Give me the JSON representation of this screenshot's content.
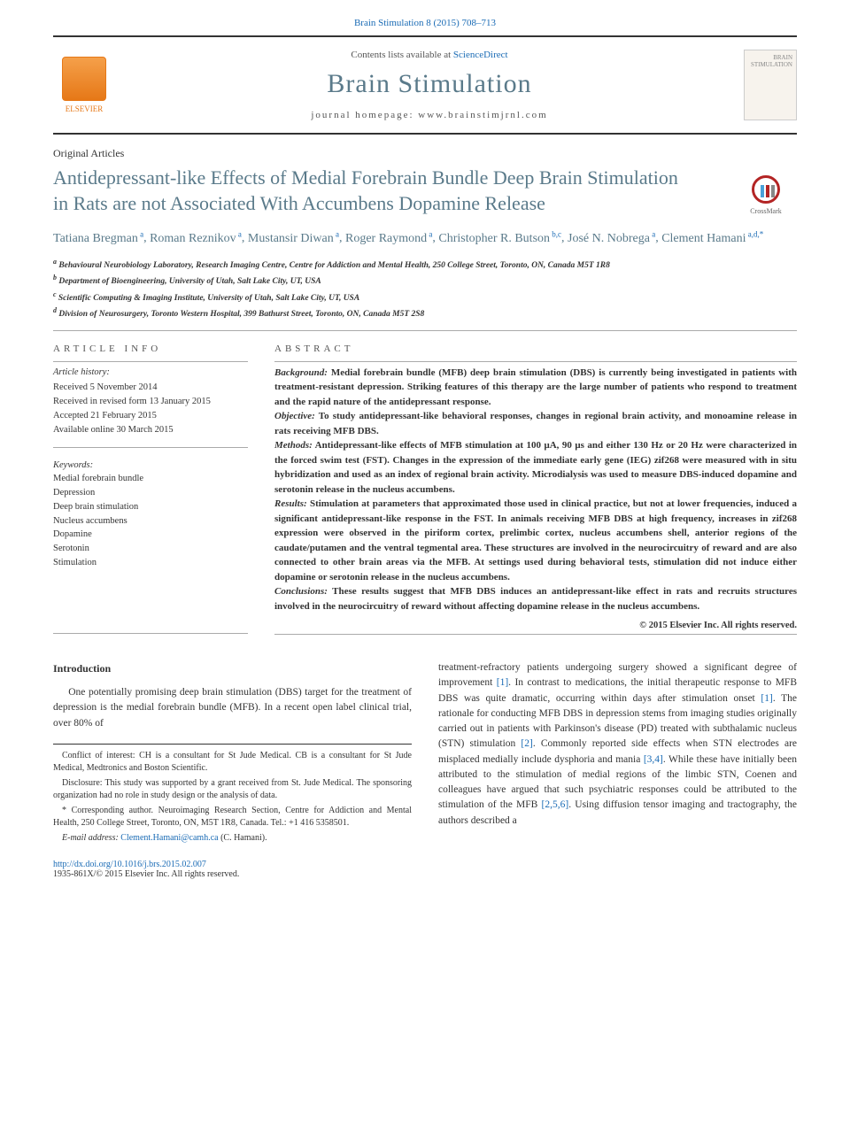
{
  "header_citation": "Brain Stimulation 8 (2015) 708–713",
  "masthead": {
    "publisher": "ELSEVIER",
    "contents_prefix": "Contents lists available at ",
    "contents_link": "ScienceDirect",
    "journal_name": "Brain Stimulation",
    "homepage_prefix": "journal homepage: ",
    "homepage_url": "www.brainstimjrnl.com",
    "cover_text": "BRAIN STIMULATION"
  },
  "article_type": "Original Articles",
  "title": "Antidepressant-like Effects of Medial Forebrain Bundle Deep Brain Stimulation in Rats are not Associated With Accumbens Dopamine Release",
  "crossmark": "CrossMark",
  "authors": [
    {
      "name": "Tatiana Bregman",
      "aff": "a"
    },
    {
      "name": "Roman Reznikov",
      "aff": "a"
    },
    {
      "name": "Mustansir Diwan",
      "aff": "a"
    },
    {
      "name": "Roger Raymond",
      "aff": "a"
    },
    {
      "name": "Christopher R. Butson",
      "aff": "b,c"
    },
    {
      "name": "José N. Nobrega",
      "aff": "a"
    },
    {
      "name": "Clement Hamani",
      "aff": "a,d,*"
    }
  ],
  "affiliations": [
    {
      "key": "a",
      "text": "Behavioural Neurobiology Laboratory, Research Imaging Centre, Centre for Addiction and Mental Health, 250 College Street, Toronto, ON, Canada M5T 1R8"
    },
    {
      "key": "b",
      "text": "Department of Bioengineering, University of Utah, Salt Lake City, UT, USA"
    },
    {
      "key": "c",
      "text": "Scientific Computing & Imaging Institute, University of Utah, Salt Lake City, UT, USA"
    },
    {
      "key": "d",
      "text": "Division of Neurosurgery, Toronto Western Hospital, 399 Bathurst Street, Toronto, ON, Canada M5T 2S8"
    }
  ],
  "info_label": "ARTICLE INFO",
  "abstract_label": "ABSTRACT",
  "history": {
    "title": "Article history:",
    "received": "Received 5 November 2014",
    "revised": "Received in revised form 13 January 2015",
    "accepted": "Accepted 21 February 2015",
    "online": "Available online 30 March 2015"
  },
  "keywords_title": "Keywords:",
  "keywords": [
    "Medial forebrain bundle",
    "Depression",
    "Deep brain stimulation",
    "Nucleus accumbens",
    "Dopamine",
    "Serotonin",
    "Stimulation"
  ],
  "abstract": {
    "background_label": "Background:",
    "background": " Medial forebrain bundle (MFB) deep brain stimulation (DBS) is currently being investigated in patients with treatment-resistant depression. Striking features of this therapy are the large number of patients who respond to treatment and the rapid nature of the antidepressant response.",
    "objective_label": "Objective:",
    "objective": " To study antidepressant-like behavioral responses, changes in regional brain activity, and monoamine release in rats receiving MFB DBS.",
    "methods_label": "Methods:",
    "methods": " Antidepressant-like effects of MFB stimulation at 100 μA, 90 μs and either 130 Hz or 20 Hz were characterized in the forced swim test (FST). Changes in the expression of the immediate early gene (IEG) zif268 were measured with in situ hybridization and used as an index of regional brain activity. Microdialysis was used to measure DBS-induced dopamine and serotonin release in the nucleus accumbens.",
    "results_label": "Results:",
    "results": " Stimulation at parameters that approximated those used in clinical practice, but not at lower frequencies, induced a significant antidepressant-like response in the FST. In animals receiving MFB DBS at high frequency, increases in zif268 expression were observed in the piriform cortex, prelimbic cortex, nucleus accumbens shell, anterior regions of the caudate/putamen and the ventral tegmental area. These structures are involved in the neurocircuitry of reward and are also connected to other brain areas via the MFB. At settings used during behavioral tests, stimulation did not induce either dopamine or serotonin release in the nucleus accumbens.",
    "conclusions_label": "Conclusions:",
    "conclusions": " These results suggest that MFB DBS induces an antidepressant-like effect in rats and recruits structures involved in the neurocircuitry of reward without affecting dopamine release in the nucleus accumbens."
  },
  "copyright": "© 2015 Elsevier Inc. All rights reserved.",
  "intro_heading": "Introduction",
  "intro_left": "One potentially promising deep brain stimulation (DBS) target for the treatment of depression is the medial forebrain bundle (MFB). In a recent open label clinical trial, over 80% of",
  "intro_right_1": "treatment-refractory patients undergoing surgery showed a significant degree of improvement ",
  "intro_right_2": ". In contrast to medications, the initial therapeutic response to MFB DBS was quite dramatic, occurring within days after stimulation onset ",
  "intro_right_3": ". The rationale for conducting MFB DBS in depression stems from imaging studies originally carried out in patients with Parkinson's disease (PD) treated with subthalamic nucleus (STN) stimulation ",
  "intro_right_4": ". Commonly reported side effects when STN electrodes are misplaced medially include dysphoria and mania ",
  "intro_right_5": ". While these have initially been attributed to the stimulation of medial regions of the limbic STN, Coenen and colleagues have argued that such psychiatric responses could be attributed to the stimulation of the MFB ",
  "intro_right_6": ". Using diffusion tensor imaging and tractography, the authors described a",
  "cites": {
    "c1": "[1]",
    "c2": "[1]",
    "c3": "[2]",
    "c4": "[3,4]",
    "c5": "[2,5,6]"
  },
  "footnotes": {
    "conflict": "Conflict of interest: CH is a consultant for St Jude Medical. CB is a consultant for St Jude Medical, Medtronics and Boston Scientific.",
    "disclosure": "Disclosure: This study was supported by a grant received from St. Jude Medical. The sponsoring organization had no role in study design or the analysis of data.",
    "corresponding": "* Corresponding author. Neuroimaging Research Section, Centre for Addiction and Mental Health, 250 College Street, Toronto, ON, M5T 1R8, Canada. Tel.: +1 416 5358501.",
    "email_label": "E-mail address: ",
    "email": "Clement.Hamani@camh.ca",
    "email_suffix": " (C. Hamani)."
  },
  "footer": {
    "doi": "http://dx.doi.org/10.1016/j.brs.2015.02.007",
    "issn": "1935-861X/© 2015 Elsevier Inc. All rights reserved."
  }
}
